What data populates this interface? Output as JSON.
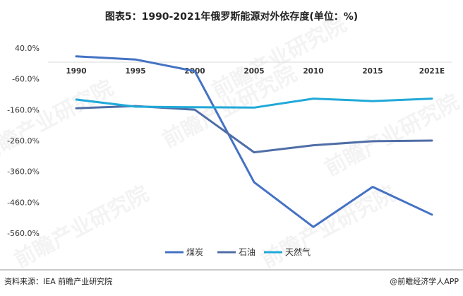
{
  "title": "图表5：1990-2021年俄罗斯能源对外依存度(单位：%)",
  "source": "资料来源：IEA 前瞻产业研究院",
  "brand": "@前瞻经济学人APP",
  "watermark": "前瞻产业研究院",
  "colors": {
    "coal": "#4472C4",
    "oil": "#4F6EA6",
    "gas": "#21A9D8",
    "footer_rule": "#999999"
  },
  "chart_data": {
    "type": "line",
    "title": "图表5：1990-2021年俄罗斯能源对外依存度(单位：%)",
    "xlabel": "",
    "ylabel": "",
    "categories": [
      "1990",
      "1995",
      "2000",
      "2005",
      "2010",
      "2015",
      "2021E"
    ],
    "ylim": [
      -560,
      40
    ],
    "yticks": [
      40,
      -60,
      -160,
      -260,
      -360,
      -460,
      -560
    ],
    "ytick_labels": [
      "40.0%",
      "-60.0%",
      "-160.0%",
      "-260.0%",
      "-360.0%",
      "-460.0%",
      "-560.0%"
    ],
    "legend_position": "bottom",
    "grid": false,
    "series": [
      {
        "name": "煤炭",
        "key": "coal",
        "values": [
          13,
          3,
          -35,
          -395,
          -540,
          -410,
          -500
        ]
      },
      {
        "name": "石油",
        "key": "oil",
        "values": [
          -155,
          -148,
          -160,
          -298,
          -275,
          -262,
          -260
        ]
      },
      {
        "name": "天然气",
        "key": "gas",
        "values": [
          -127,
          -150,
          -152,
          -153,
          -124,
          -132,
          -124
        ]
      }
    ]
  }
}
